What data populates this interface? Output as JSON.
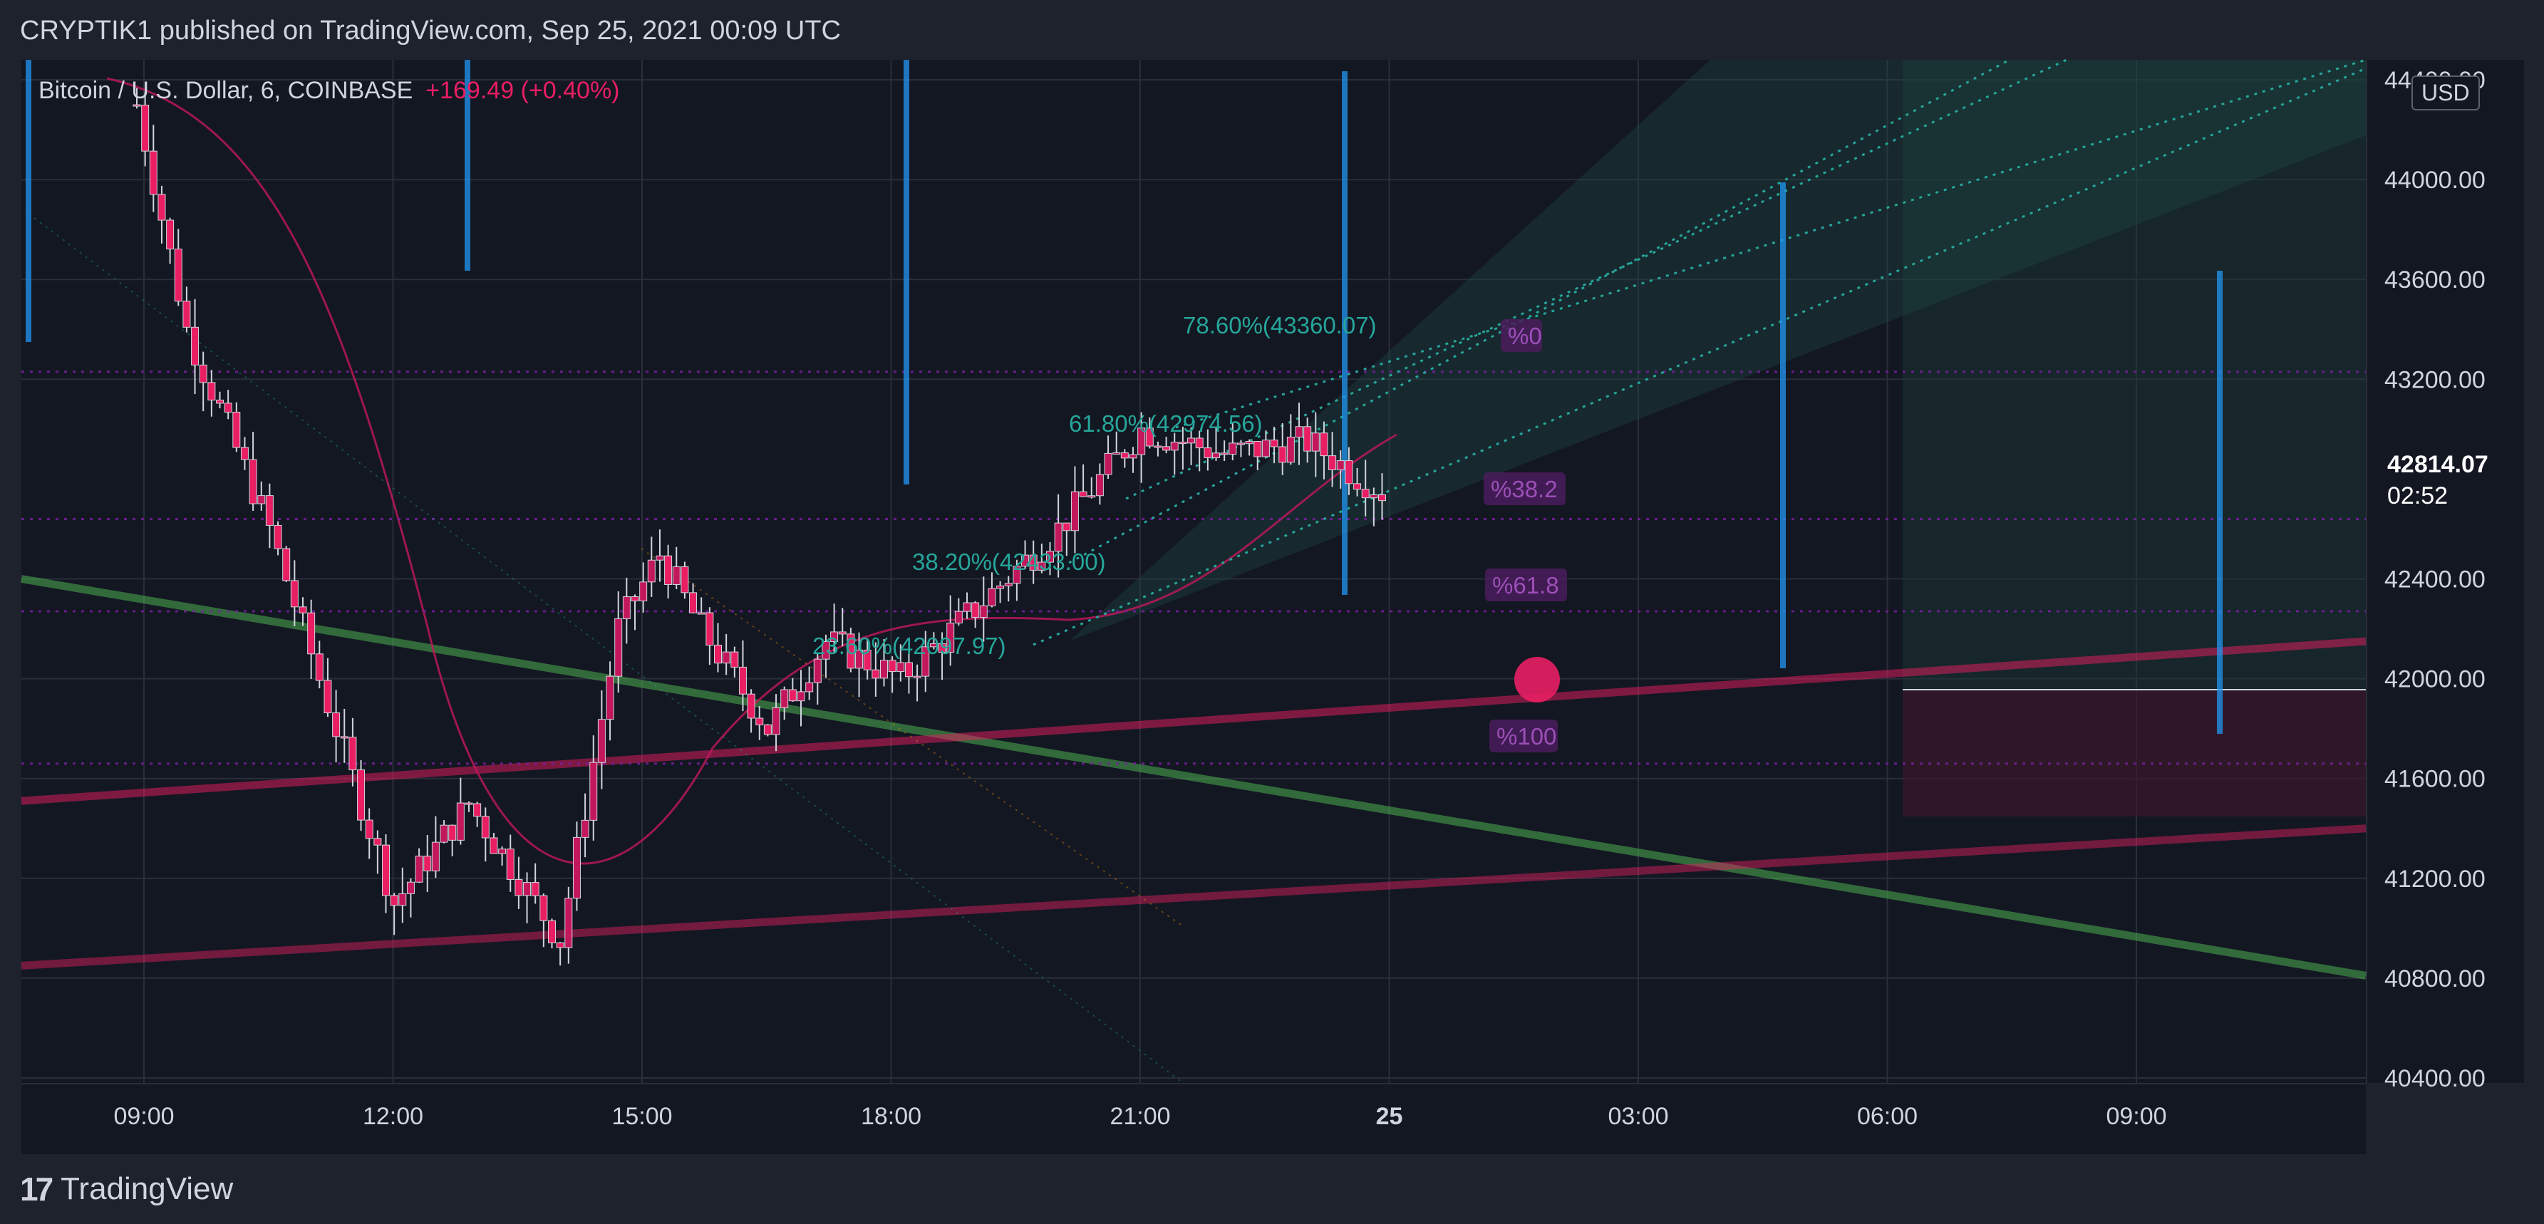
{
  "header": {
    "title": "CRYPTIK1 published on TradingView.com, Sep 25, 2021 00:09 UTC"
  },
  "legend": {
    "symbol": "Bitcoin / U.S. Dollar, 6, COINBASE",
    "change": "+169.49 (+0.40%)"
  },
  "price_axis": {
    "currency_badge": "USD",
    "last_price": "42814.07",
    "countdown": "02:52"
  },
  "footer": {
    "brand": "TradingView",
    "brand_mark": "17"
  },
  "colors": {
    "background": "#131722",
    "bull_candle": "#c2185b",
    "bear_candle": "#e91e63",
    "trend_green": "#4caf50",
    "trend_pink": "#e91e63",
    "fib_teal": "#26a69a",
    "blue_bar": "#2196f3",
    "purple_label": "#7b1fa2"
  },
  "chart_data": {
    "type": "candlestick",
    "ylim": [
      40380,
      44480
    ],
    "y_ticks": [
      "44400.00",
      "44000.00",
      "43600.00",
      "43200.00",
      "42400.00",
      "42000.00",
      "41600.00",
      "41200.00",
      "40800.00",
      "40400.00"
    ],
    "x_ticks": [
      {
        "label": "09:00",
        "hours": 0
      },
      {
        "label": "12:00",
        "hours": 3
      },
      {
        "label": "15:00",
        "hours": 6
      },
      {
        "label": "18:00",
        "hours": 9
      },
      {
        "label": "21:00",
        "hours": 12
      },
      {
        "label": "25",
        "hours": 15,
        "bold": true
      },
      {
        "label": "03:00",
        "hours": 18
      },
      {
        "label": "06:00",
        "hours": 21
      },
      {
        "label": "09:00",
        "hours": 24
      }
    ],
    "fib_labels": [
      {
        "text": "78.60%(43360.07)",
        "price": 43360.07
      },
      {
        "text": "61.80%(42974.56)",
        "price": 42974.56
      },
      {
        "text": "38.20%(42433.00)",
        "price": 42433.0
      },
      {
        "text": "23.60%(42097.97)",
        "price": 42097.97
      }
    ],
    "level_badges": [
      {
        "text": "%0",
        "price": 43230
      },
      {
        "text": "%38.2",
        "price": 42640
      },
      {
        "text": "%61.8",
        "price": 42270
      },
      {
        "text": "%100",
        "price": 41660
      }
    ],
    "last_close": 42814.07
  }
}
